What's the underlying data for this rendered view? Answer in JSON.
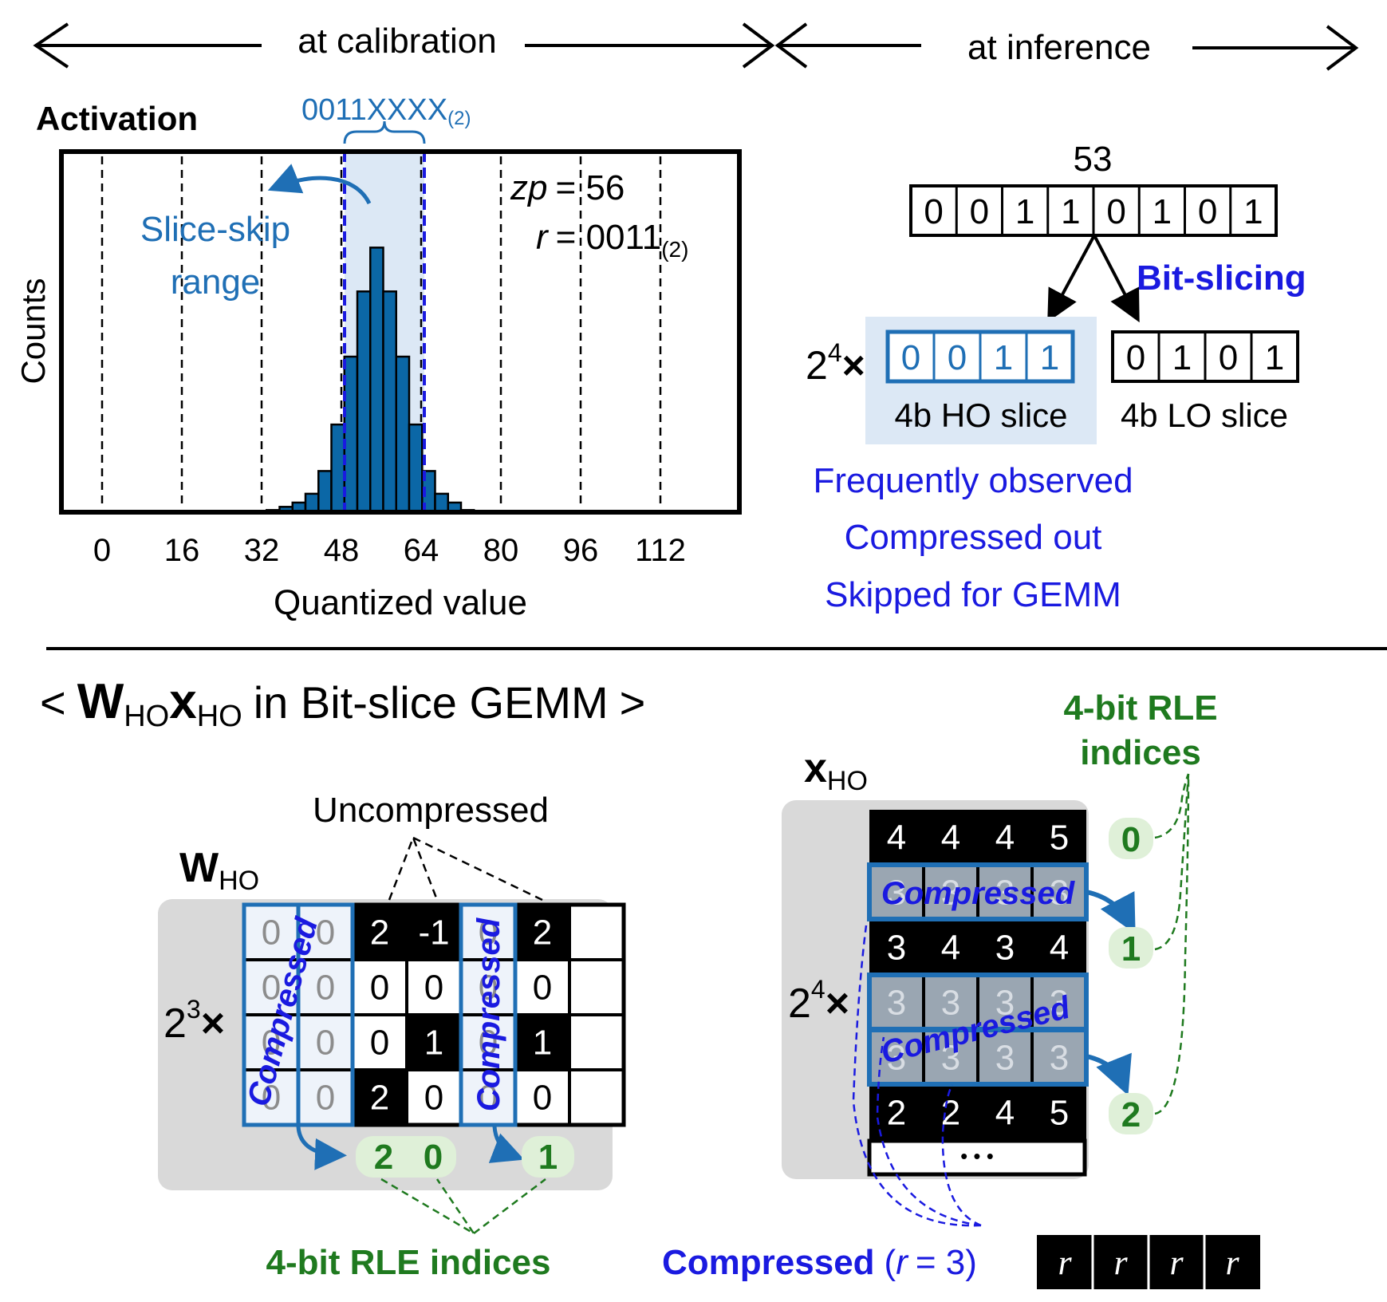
{
  "header": {
    "calibration_label": "at calibration",
    "inference_label": "at inference"
  },
  "histogram": {
    "title": "Activation",
    "ylabel": "Counts",
    "xlabel": "Quantized value",
    "xticks": [
      "0",
      "16",
      "32",
      "48",
      "64",
      "80",
      "96",
      "112"
    ],
    "pattern_label": "0011XXXX",
    "pattern_subscript": "(2)",
    "skip_label_line1": "Slice-skip",
    "skip_label_line2": "range",
    "zp_symbol": "zp",
    "zp_value": "= 56",
    "r_symbol": "r",
    "r_value": "= 0011",
    "r_subscript": "(2)"
  },
  "chart_data": {
    "type": "bar",
    "title": "Activation",
    "xlabel": "Quantized value",
    "ylabel": "Counts",
    "xlim": [
      -8,
      128
    ],
    "ylim": [
      0,
      1
    ],
    "xticks": [
      0,
      16,
      32,
      48,
      64,
      80,
      96,
      112
    ],
    "bin_width": 2.6,
    "x": [
      34.3,
      36.9,
      39.5,
      42.1,
      44.7,
      47.3,
      49.9,
      52.5,
      55.1,
      57.7,
      60.3,
      62.9,
      65.5,
      68.1,
      70.7,
      73.3
    ],
    "values": [
      0.008,
      0.02,
      0.036,
      0.069,
      0.154,
      0.328,
      0.582,
      0.826,
      0.99,
      0.826,
      0.582,
      0.328,
      0.154,
      0.069,
      0.036,
      0.008
    ],
    "highlight_range": [
      48,
      64
    ],
    "grid": "vertical dashed",
    "color": "#0b67a6"
  },
  "bitslice": {
    "value": "53",
    "bits": [
      "0",
      "0",
      "1",
      "1",
      "0",
      "1",
      "0",
      "1"
    ],
    "arrow_label": "Bit-slicing",
    "ho_multiplier_base": "2",
    "ho_multiplier_exp": "4",
    "ho_multiplier_sign": "×",
    "ho_bits": [
      "0",
      "0",
      "1",
      "1"
    ],
    "lo_bits": [
      "0",
      "1",
      "0",
      "1"
    ],
    "ho_label": "4b HO slice",
    "lo_label": "4b LO slice",
    "notes": [
      "Frequently observed",
      "Compressed out",
      "Skipped for GEMM"
    ]
  },
  "gemm": {
    "title_open": "<",
    "w_symbol": "W",
    "w_subscript": "HO",
    "x_symbol": "x",
    "x_subscript": "HO",
    "title_rest": "in Bit-slice GEMM",
    "title_close": ">"
  },
  "weight": {
    "label": "W",
    "label_subscript": "HO",
    "multiplier_base": "2",
    "multiplier_exp": "3",
    "multiplier_sign": "×",
    "uncompressed_label": "Uncompressed",
    "compressed_label": "Compressed",
    "grid": [
      [
        "0",
        "0",
        "2",
        "-1",
        "0",
        "2",
        ""
      ],
      [
        "0",
        "0",
        "0",
        "0",
        "0",
        "0",
        ""
      ],
      [
        "0",
        "0",
        "0",
        "1",
        "0",
        "1",
        ""
      ],
      [
        "0",
        "0",
        "2",
        "0",
        "0",
        "0",
        ""
      ]
    ],
    "rle_indices": [
      "2",
      "0",
      "1"
    ],
    "rle_label": "4-bit RLE indices"
  },
  "activation": {
    "label": "x",
    "label_subscript": "HO",
    "multiplier_base": "2",
    "multiplier_exp": "4",
    "multiplier_sign": "×",
    "rows": [
      [
        "4",
        "4",
        "4",
        "5"
      ],
      [
        "3",
        "3",
        "3",
        "3"
      ],
      [
        "3",
        "4",
        "3",
        "4"
      ],
      [
        "3",
        "3",
        "3",
        "3"
      ],
      [
        "3",
        "3",
        "3",
        "3"
      ],
      [
        "2",
        "2",
        "4",
        "5"
      ]
    ],
    "ellipsis": "• • •",
    "compressed_label": "Compressed",
    "rle_indices": [
      "0",
      "1",
      "2"
    ],
    "rle_label_line1": "4-bit RLE",
    "rle_label_line2": "indices",
    "footer_bold": "Compressed",
    "footer_open": "(",
    "footer_r": "r",
    "footer_rest": "= 3)",
    "r_cells": [
      "r",
      "r",
      "r",
      "r"
    ]
  },
  "colors": {
    "bar_fill": "#0b67a6",
    "slice_blue": "#1f6fb5",
    "note_blue": "#1a1ae0",
    "rle_green": "#1f7a1f",
    "rle_bubble": "#dff0d8",
    "highlight": "#dce8f5",
    "panel_gray": "#d9d9d9"
  }
}
